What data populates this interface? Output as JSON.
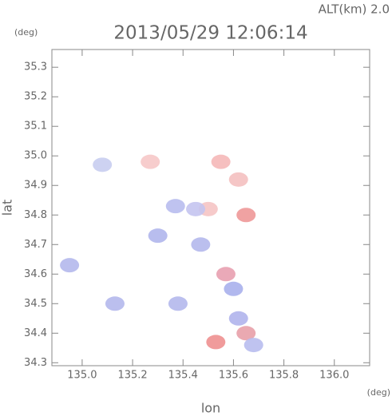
{
  "chart_data": {
    "type": "scatter",
    "title": "2013/05/29 12:06:14",
    "subtitle": "ALT(km) 2.0",
    "y_unit": "(deg)",
    "x_unit": "(deg)",
    "x_label": "lon",
    "y_label": "lat",
    "xlim": [
      134.88,
      136.14
    ],
    "ylim": [
      34.29,
      35.36
    ],
    "xticks": [
      {
        "value": 135,
        "label": "135.0"
      },
      135.2,
      135.4,
      135.6,
      135.8,
      {
        "value": 136,
        "label": "136.0"
      }
    ],
    "yticks": [
      34.3,
      34.4,
      34.5,
      34.6,
      34.7,
      34.8,
      34.9,
      {
        "value": 35,
        "label": "35.0"
      },
      35.1,
      35.2,
      35.3
    ],
    "points": {
      "x": [
        135.08,
        134.95,
        135.27,
        135.37,
        135.3,
        135.55,
        135.62,
        135.5,
        135.45,
        135.47,
        135.57,
        135.6,
        135.62,
        135.65,
        135.38,
        135.13,
        135.53,
        135.68,
        135.65
      ],
      "y": [
        34.97,
        34.63,
        34.98,
        34.83,
        34.73,
        34.98,
        34.92,
        34.82,
        34.82,
        34.7,
        34.6,
        34.55,
        34.45,
        34.4,
        34.5,
        34.5,
        34.37,
        34.36,
        34.8
      ],
      "colors": [
        "#c8cdf0",
        "#b4b8ec",
        "#f6c8c8",
        "#b8bcee",
        "#b0b6ec",
        "#f5b8b8",
        "#f4c0c0",
        "#f5c4c4",
        "#c4c4f0",
        "#b4b8ec",
        "#e8a0b0",
        "#a8b0ec",
        "#b0b4ec",
        "#e8a0a8",
        "#b4b8ec",
        "#b4b8ec",
        "#ee9090",
        "#b8bcee",
        "#ee9898"
      ]
    }
  }
}
